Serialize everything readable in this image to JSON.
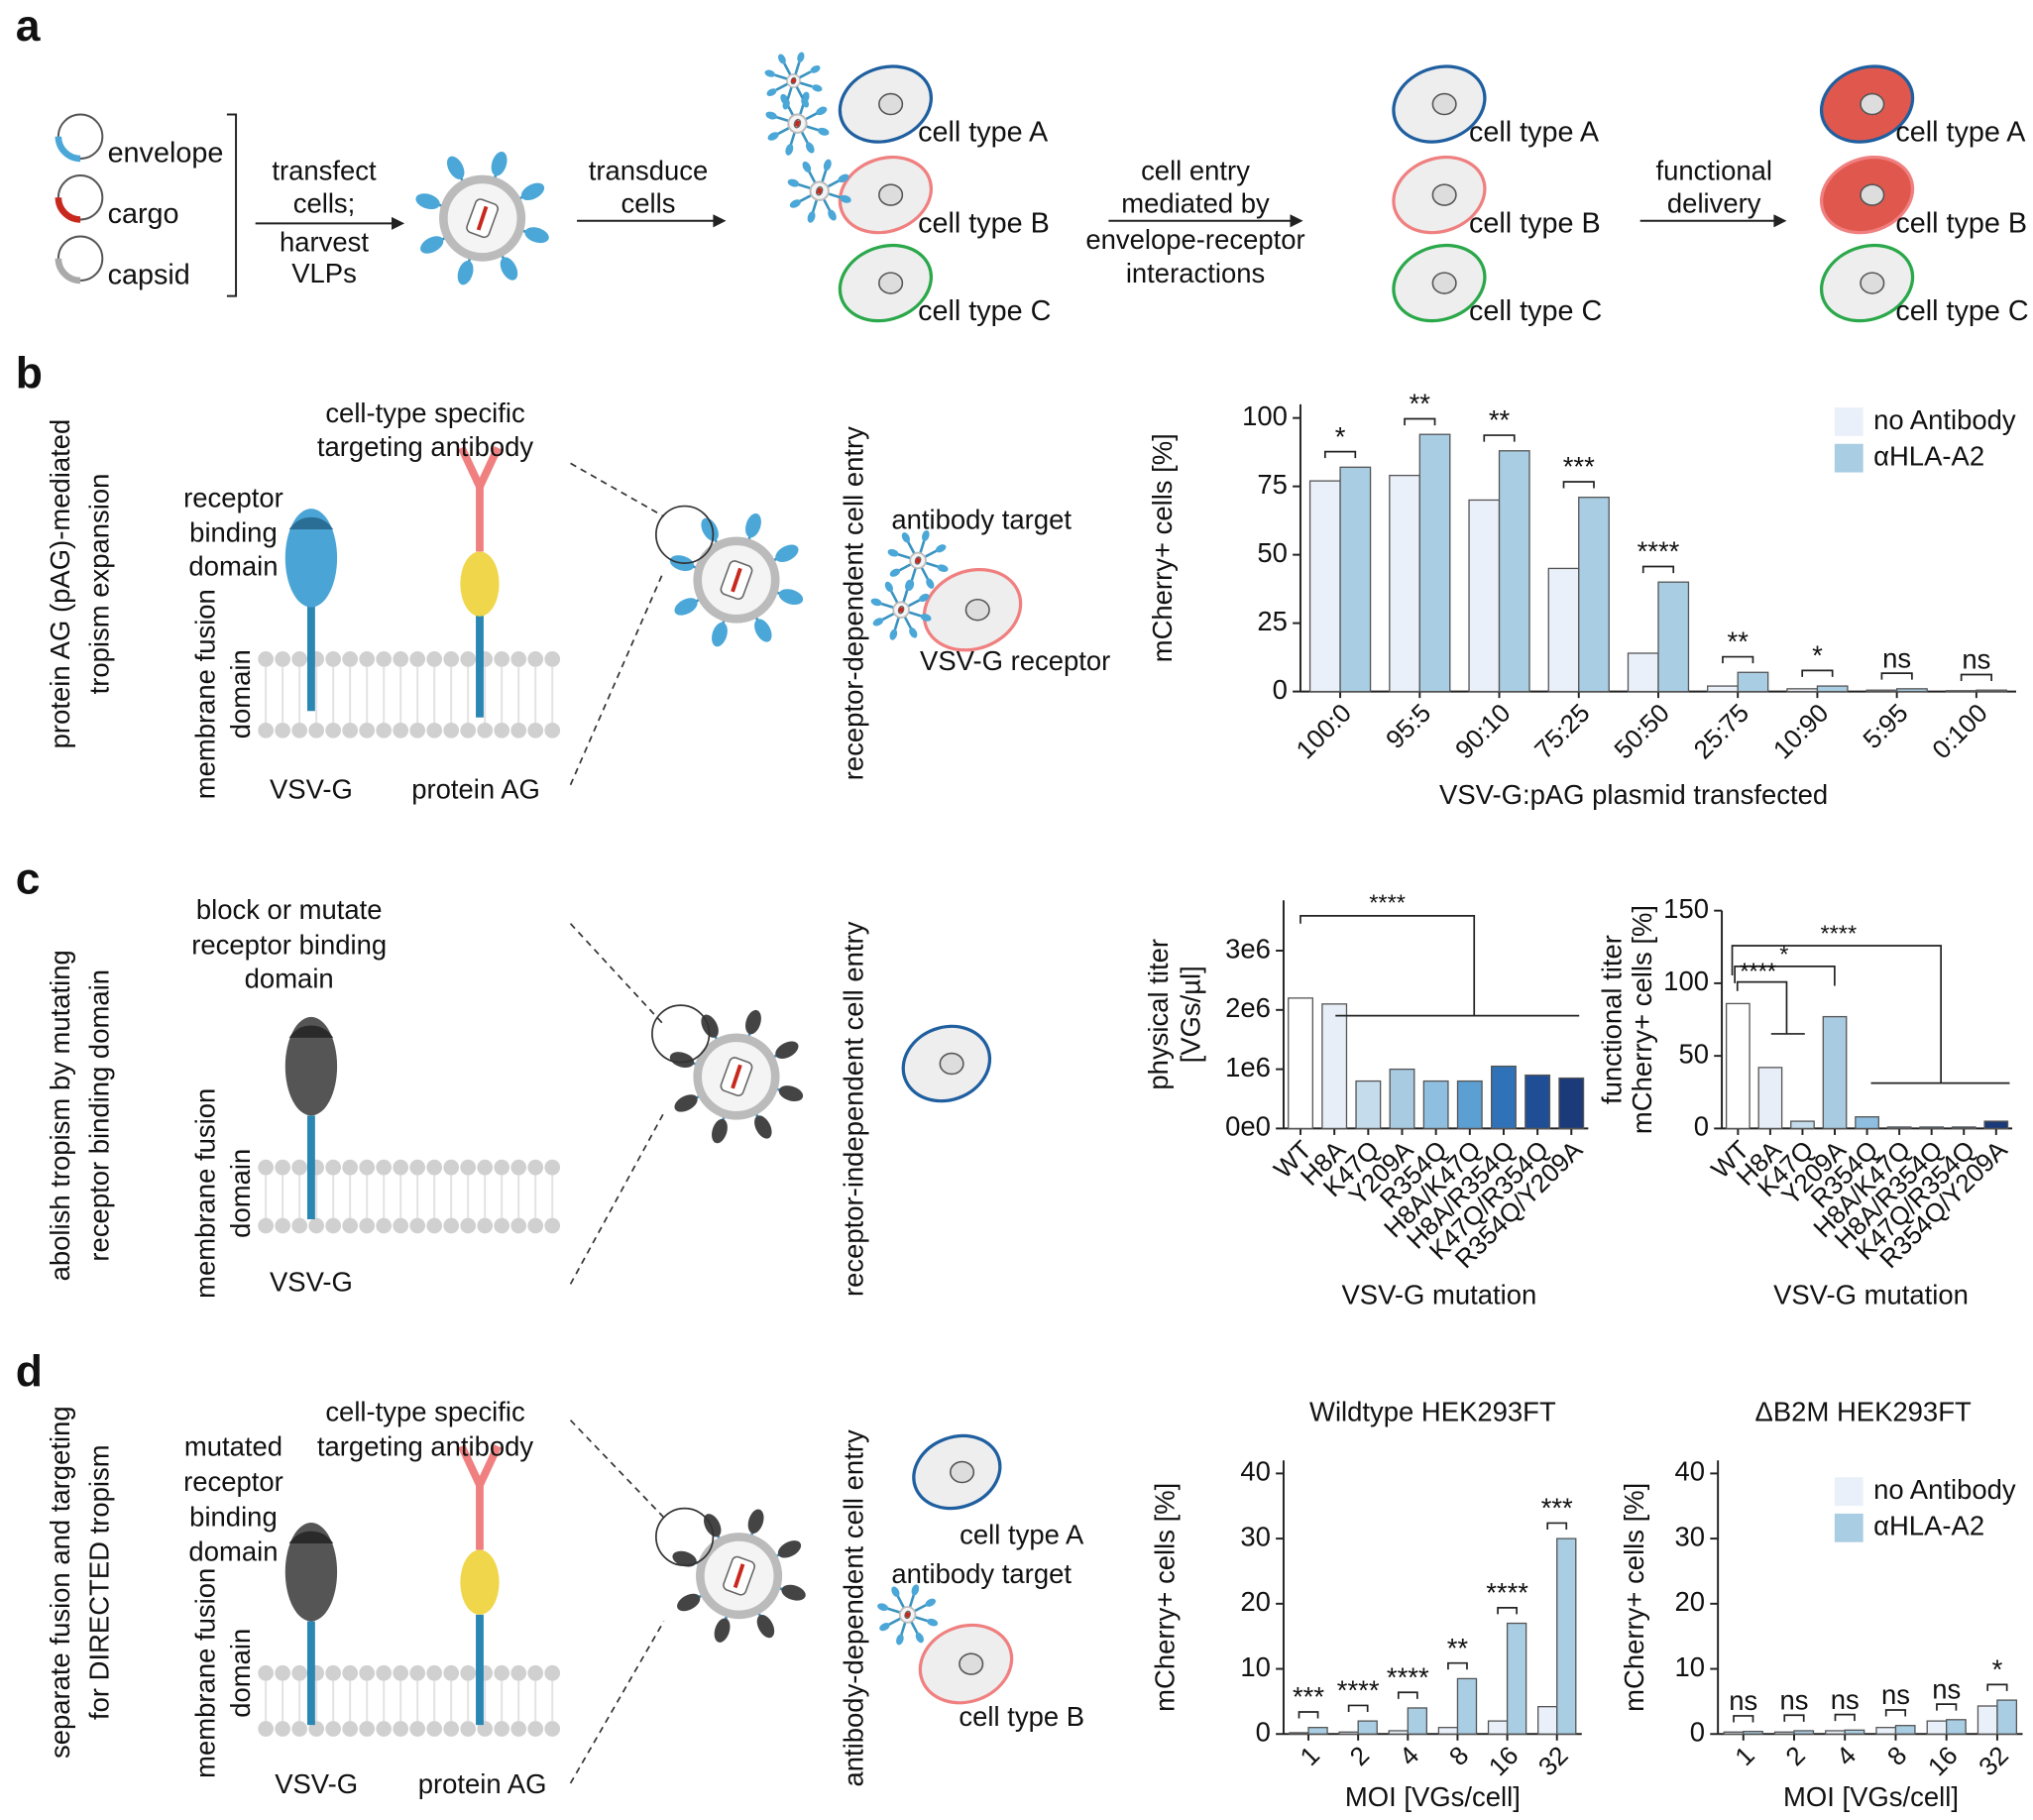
{
  "panel_labels": [
    "a",
    "b",
    "c",
    "d"
  ],
  "a": {
    "plasmids": [
      "envelope",
      "cargo",
      "capsid"
    ],
    "step1": [
      "transfect",
      "cells;",
      "harvest",
      "VLPs"
    ],
    "step2": [
      "transduce",
      "cells"
    ],
    "step3": [
      "cell entry",
      "mediated by",
      "envelope-receptor",
      "interactions"
    ],
    "step4": [
      "functional",
      "delivery"
    ],
    "cells": [
      "cell type A",
      "cell type B",
      "cell type C"
    ]
  },
  "b": {
    "side": [
      "protein AG (pAG)-mediated",
      "tropism expansion"
    ],
    "antibody": [
      "cell-type specific",
      "targeting antibody"
    ],
    "rbd": [
      "receptor",
      "binding",
      "domain"
    ],
    "mfd": [
      "membrane fusion",
      "domain"
    ],
    "vsvg": "VSV-G",
    "pag": "protein AG",
    "entry": "receptor-dependent cell entry",
    "target": "antibody target",
    "receptor": "VSV-G receptor"
  },
  "c": {
    "side": [
      "abolish tropism by mutating",
      "receptor binding domain"
    ],
    "block": [
      "block or mutate",
      "receptor binding",
      "domain"
    ],
    "mfd": [
      "membrane fusion",
      "domain"
    ],
    "vsvg": "VSV-G",
    "entry": "receptor-independent cell entry"
  },
  "d": {
    "side": [
      "separate fusion and targeting",
      "for DIRECTED tropism"
    ],
    "mutated": [
      "mutated",
      "receptor",
      "binding",
      "domain"
    ],
    "antibody": [
      "cell-type specific",
      "targeting antibody"
    ],
    "mfd": [
      "membrane fusion",
      "domain"
    ],
    "vsvg": "VSV-G",
    "pag": "protein AG",
    "entry": "antibody-dependent cell entry",
    "cells": [
      "cell type A",
      "cell type B"
    ],
    "target": "antibody target"
  },
  "chart_data": [
    {
      "type": "bar",
      "x_label": "VSV-G:pAG plasmid transfected",
      "y_label": [
        "mCherry+ cells [%]"
      ],
      "categories": [
        "100:0",
        "95:5",
        "90:10",
        "75:25",
        "50:50",
        "25:75",
        "10:90",
        "5:95",
        "0:100"
      ],
      "series": [
        {
          "name": "no Antibody",
          "color": "#eaf0f9",
          "values": [
            77,
            79,
            70,
            45,
            14,
            2,
            1,
            0.5,
            0.3
          ]
        },
        {
          "name": "αHLA-A2",
          "color": "#a9cde3",
          "values": [
            82,
            94,
            88,
            71,
            40,
            7,
            2,
            1,
            0.5
          ]
        }
      ],
      "annotations": [
        "*",
        "**",
        "**",
        "***",
        "****",
        "**",
        "*",
        "ns",
        "ns"
      ],
      "ylim": [
        0,
        105
      ],
      "yticks": [
        0,
        25,
        50,
        75,
        100
      ],
      "legend": "upper right"
    },
    {
      "type": "bar",
      "x_label": "VSV-G mutation",
      "y_label": [
        "physical titer",
        "[VGs/µl]"
      ],
      "categories": [
        "WT",
        "H8A",
        "K47Q",
        "Y209A",
        "R354Q",
        "H8A/K47Q",
        "H8A/R354Q",
        "K47Q/R354Q",
        "R354Q/Y209A"
      ],
      "values": [
        2200000,
        2100000,
        800000,
        1000000,
        800000,
        800000,
        1050000,
        900000,
        850000
      ],
      "colors": [
        "#ffffff",
        "#e8eef8",
        "#c5dcec",
        "#a8cbe2",
        "#8fbfe0",
        "#5b9fd3",
        "#2f72b8",
        "#1f4e96",
        "#1b3a7a"
      ],
      "annotations": [
        "****"
      ],
      "ylim": [
        0,
        3850000
      ],
      "yticks": [
        {
          "value": 0,
          "label": "0e0"
        },
        {
          "value": 1000000,
          "label": "1e6"
        },
        {
          "value": 2000000,
          "label": "2e6"
        },
        {
          "value": 3000000,
          "label": "3e6"
        }
      ]
    },
    {
      "type": "bar",
      "x_label": "VSV-G mutation",
      "y_label": [
        "functional titer",
        "mCherry+ cells [%]"
      ],
      "categories": [
        "WT",
        "H8A",
        "K47Q",
        "Y209A",
        "R354Q",
        "H8A/K47Q",
        "H8A/R354Q",
        "K47Q/R354Q",
        "R354Q/Y209A"
      ],
      "values": [
        86,
        42,
        5,
        77,
        8,
        1,
        1,
        1,
        5
      ],
      "colors": [
        "#ffffff",
        "#e8eef8",
        "#c5dcec",
        "#a8cbe2",
        "#8fbfe0",
        "#5b9fd3",
        "#2f72b8",
        "#1f4e96",
        "#1b3a7a"
      ],
      "annotations": [
        "****",
        "****",
        "*",
        "****"
      ],
      "ylim": [
        0,
        150
      ],
      "yticks": [
        0,
        50,
        100,
        150
      ]
    },
    {
      "type": "bar",
      "title": "Wildtype HEK293FT",
      "x_label": "MOI [VGs/cell]",
      "y_label": [
        "mCherry+ cells [%]"
      ],
      "categories": [
        "1",
        "2",
        "4",
        "8",
        "16",
        "32"
      ],
      "series": [
        {
          "name": "no Antibody",
          "color": "#eaf0f9",
          "values": [
            0.2,
            0.3,
            0.5,
            1,
            2,
            4.2
          ]
        },
        {
          "name": "αHLA-A2",
          "color": "#a9cde3",
          "values": [
            1,
            2,
            4,
            8.5,
            17,
            30
          ]
        }
      ],
      "annotations": [
        "***",
        "****",
        "****",
        "**",
        "****",
        "***"
      ],
      "ylim": [
        0,
        42
      ],
      "yticks": [
        0,
        10,
        20,
        30,
        40
      ]
    },
    {
      "type": "bar",
      "title": "ΔB2M HEK293FT",
      "x_label": "MOI [VGs/cell]",
      "y_label": [
        "mCherry+ cells [%]"
      ],
      "categories": [
        "1",
        "2",
        "4",
        "8",
        "16",
        "32"
      ],
      "series": [
        {
          "name": "no Antibody",
          "color": "#eaf0f9",
          "values": [
            0.3,
            0.3,
            0.5,
            1,
            2,
            4.3
          ]
        },
        {
          "name": "αHLA-A2",
          "color": "#a9cde3",
          "values": [
            0.4,
            0.5,
            0.6,
            1.3,
            2.2,
            5.2
          ]
        }
      ],
      "annotations": [
        "ns",
        "ns",
        "ns",
        "ns",
        "ns",
        "*"
      ],
      "ylim": [
        0,
        42
      ],
      "yticks": [
        0,
        10,
        20,
        30,
        40
      ],
      "legend": "upper right"
    }
  ]
}
